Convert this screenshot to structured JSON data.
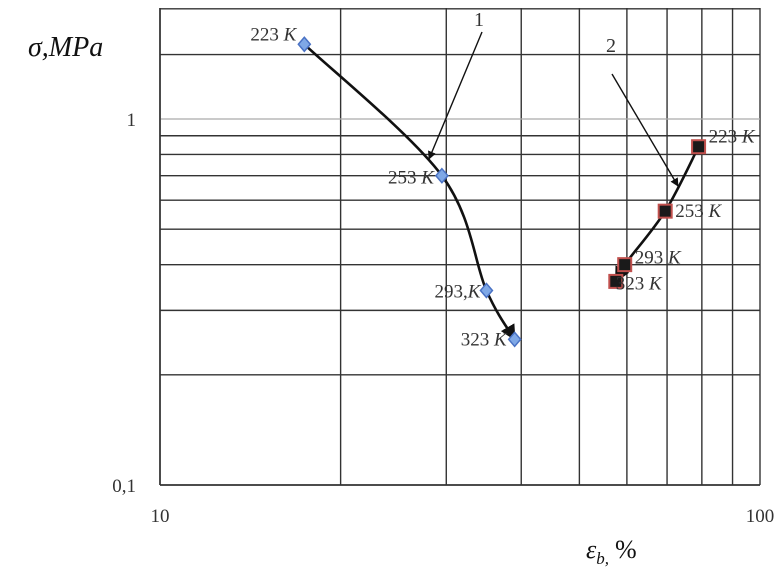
{
  "chart_data": {
    "type": "scatter",
    "xscale": "log",
    "yscale": "log",
    "xlim": [
      10,
      100
    ],
    "ylim": [
      0.1,
      2
    ],
    "grid": true,
    "ylabel": "σ,MPa",
    "xlabel_main": "ε",
    "xlabel_sub": "b,",
    "xlabel_unit": "%",
    "x_ticks": [
      {
        "value": 10,
        "label": "10"
      },
      {
        "value": 100,
        "label": "100"
      }
    ],
    "y_ticks": [
      {
        "value": 0.1,
        "label": "0,1"
      },
      {
        "value": 1,
        "label": "1"
      }
    ],
    "series": [
      {
        "marker": "diamond",
        "color": "#4a72c4",
        "curve_label": "1",
        "points": [
          {
            "x": 17.4,
            "y": 1.6,
            "label": "223 K"
          },
          {
            "x": 29.5,
            "y": 0.7,
            "label": "253 K"
          },
          {
            "x": 35.0,
            "y": 0.34,
            "label": "293,K"
          },
          {
            "x": 39.0,
            "y": 0.25,
            "label": "323 K"
          }
        ]
      },
      {
        "marker": "square",
        "color": "#c0504d",
        "curve_label": "2",
        "points": [
          {
            "x": 79.0,
            "y": 0.84,
            "label": "223 K"
          },
          {
            "x": 69.5,
            "y": 0.56,
            "label": "253 K"
          },
          {
            "x": 59.5,
            "y": 0.4,
            "label": "293 K"
          },
          {
            "x": 57.5,
            "y": 0.36,
            "label": "323 K"
          }
        ]
      }
    ]
  }
}
